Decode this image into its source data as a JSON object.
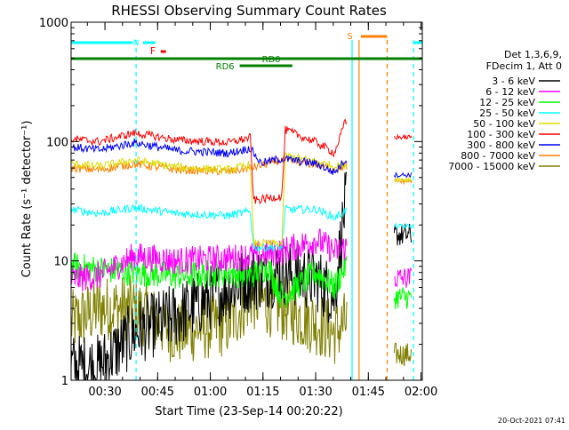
{
  "chart_data": {
    "type": "line",
    "title": "RHESSI Observing Summary Count Rates",
    "xlabel": "Start Time (23-Sep-14 00:20:22)",
    "ylabel": "Count Rate (s⁻¹ detector⁻¹)",
    "yscale": "log",
    "ylim": [
      1,
      1000
    ],
    "xlim_minutes_after_start": [
      0,
      100
    ],
    "x_ticks": [
      "00:30",
      "00:45",
      "01:00",
      "01:15",
      "01:30",
      "01:45",
      "02:00"
    ],
    "y_ticks": [
      "1",
      "10",
      "100",
      "1000"
    ],
    "legend_position": "right",
    "legend_header": [
      "Det 1,3,6,9,",
      "FDecim 1, Att 0"
    ],
    "series": [
      {
        "name": "3 - 6 keV",
        "color": "#000000"
      },
      {
        "name": "6 - 12 keV",
        "color": "#ff00ff"
      },
      {
        "name": "12 - 25 keV",
        "color": "#00ff00"
      },
      {
        "name": "25 - 50 keV",
        "color": "#00ffff"
      },
      {
        "name": "50 - 100 keV",
        "color": "#dddd00"
      },
      {
        "name": "100 - 300 keV",
        "color": "#ff0000"
      },
      {
        "name": "300 - 800 keV",
        "color": "#0000ff"
      },
      {
        "name": "800 - 7000 keV",
        "color": "#ff8000"
      },
      {
        "name": "7000 - 15000 keV",
        "color": "#808000"
      }
    ],
    "series_profiles": [
      {
        "series": "100 - 300 keV",
        "points": [
          [
            0,
            105
          ],
          [
            8,
            100
          ],
          [
            18,
            118
          ],
          [
            30,
            103
          ],
          [
            45,
            98
          ],
          [
            51,
            108
          ],
          [
            52,
            32
          ],
          [
            60,
            35
          ],
          [
            61,
            125
          ],
          [
            70,
            98
          ],
          [
            75,
            80
          ],
          [
            78,
            145
          ]
        ]
      },
      {
        "series": "300 - 800 keV",
        "points": [
          [
            0,
            90
          ],
          [
            8,
            85
          ],
          [
            18,
            98
          ],
          [
            30,
            84
          ],
          [
            45,
            80
          ],
          [
            51,
            88
          ],
          [
            54,
            66
          ],
          [
            60,
            72
          ],
          [
            70,
            65
          ],
          [
            75,
            55
          ],
          [
            78,
            70
          ]
        ]
      },
      {
        "series": "50 - 100 keV",
        "points": [
          [
            0,
            65
          ],
          [
            8,
            62
          ],
          [
            18,
            70
          ],
          [
            30,
            61
          ],
          [
            45,
            58
          ],
          [
            51,
            64
          ],
          [
            52,
            14
          ],
          [
            60,
            14
          ],
          [
            61,
            76
          ],
          [
            70,
            68
          ],
          [
            75,
            62
          ],
          [
            78,
            64
          ]
        ]
      },
      {
        "series": "800 - 7000 keV",
        "points": [
          [
            0,
            60
          ],
          [
            8,
            58
          ],
          [
            18,
            65
          ],
          [
            30,
            58
          ],
          [
            45,
            56
          ],
          [
            51,
            60
          ],
          [
            54,
            63
          ],
          [
            60,
            70
          ],
          [
            70,
            64
          ],
          [
            75,
            58
          ],
          [
            78,
            62
          ]
        ]
      },
      {
        "series": "25 - 50 keV",
        "points": [
          [
            0,
            27
          ],
          [
            8,
            25
          ],
          [
            18,
            28
          ],
          [
            30,
            25
          ],
          [
            45,
            24
          ],
          [
            51,
            26
          ],
          [
            52,
            13
          ],
          [
            60,
            13
          ],
          [
            61,
            27
          ],
          [
            70,
            27
          ],
          [
            75,
            23
          ],
          [
            78,
            26
          ]
        ]
      },
      {
        "series": "6 - 12 keV",
        "points": [
          [
            0,
            7
          ],
          [
            8,
            7.5
          ],
          [
            18,
            11
          ],
          [
            30,
            10
          ],
          [
            45,
            10.5
          ],
          [
            51,
            11
          ],
          [
            60,
            12
          ],
          [
            70,
            15
          ],
          [
            75,
            12
          ],
          [
            78,
            13
          ]
        ]
      },
      {
        "series": "12 - 25 keV",
        "points": [
          [
            0,
            9
          ],
          [
            8,
            8.5
          ],
          [
            18,
            8
          ],
          [
            30,
            7.5
          ],
          [
            45,
            8
          ],
          [
            51,
            7.5
          ],
          [
            56,
            9
          ],
          [
            60,
            5
          ],
          [
            70,
            8
          ],
          [
            75,
            6
          ],
          [
            78,
            9
          ]
        ]
      },
      {
        "series": "3 - 6 keV",
        "points": [
          [
            0,
            1.3
          ],
          [
            8,
            1.3
          ],
          [
            18,
            2.5
          ],
          [
            30,
            3.5
          ],
          [
            45,
            6
          ],
          [
            51,
            7
          ],
          [
            60,
            8
          ],
          [
            70,
            7
          ],
          [
            75,
            5
          ],
          [
            78,
            30
          ]
        ]
      },
      {
        "series": "7000 - 15000 keV",
        "points": [
          [
            0,
            3
          ],
          [
            8,
            4
          ],
          [
            18,
            4
          ],
          [
            30,
            2.5
          ],
          [
            45,
            3
          ],
          [
            51,
            5
          ],
          [
            60,
            4
          ],
          [
            70,
            3
          ],
          [
            75,
            2.5
          ],
          [
            78,
            3
          ]
        ]
      }
    ],
    "top_markers": [
      {
        "label": "N",
        "color": "#00ffff"
      },
      {
        "label": "F",
        "color": "#ff0000"
      },
      {
        "label": "RD0",
        "color": "#008000"
      },
      {
        "label": "RD6",
        "color": "#008000"
      },
      {
        "label": "S",
        "color": "#ff8000"
      }
    ],
    "vertical_markers": [
      {
        "minute": 18.5,
        "color": "#00ffff",
        "style": "dashed"
      },
      {
        "minute": 80,
        "color": "#00ffff",
        "style": "solid"
      },
      {
        "minute": 82,
        "color": "#ff8000",
        "style": "solid"
      },
      {
        "minute": 90,
        "color": "#ff8000",
        "style": "dashed"
      },
      {
        "minute": 97.5,
        "color": "#00ffff",
        "style": "dashed"
      }
    ],
    "footer_date": "20-Oct-2021 07:41"
  }
}
